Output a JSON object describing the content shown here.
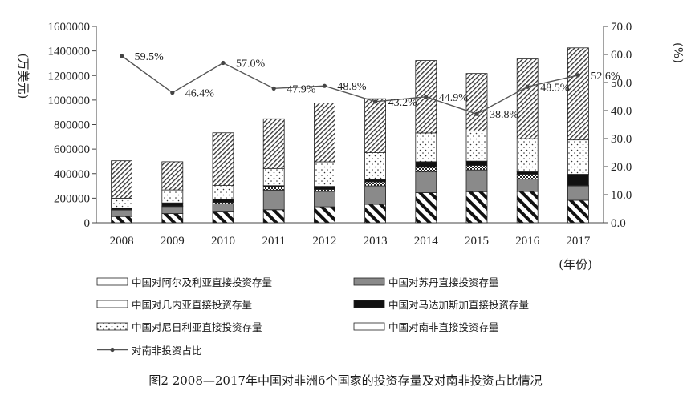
{
  "chart_data": {
    "type": "bar",
    "stacked": true,
    "categories": [
      "2008",
      "2009",
      "2010",
      "2011",
      "2012",
      "2013",
      "2014",
      "2015",
      "2016",
      "2017"
    ],
    "x_unit": "(年份)",
    "y_left": {
      "unit": "(万美元)",
      "range": [
        0,
        1600000
      ],
      "ticks": [
        "0",
        "200000",
        "400000",
        "600000",
        "800000",
        "1000000",
        "1200000",
        "1400000",
        "1600000"
      ]
    },
    "y_right": {
      "unit": "(%)",
      "range": [
        0,
        70
      ],
      "ticks": [
        "0.0",
        "10.0",
        "20.0",
        "30.0",
        "40.0",
        "50.0",
        "60.0",
        "70.0"
      ]
    },
    "series": [
      {
        "name": "中国对阿尔及利亚直接投资存量",
        "pattern": "diag-thick",
        "values": [
          51000,
          75000,
          94000,
          106000,
          130000,
          150000,
          245000,
          253000,
          255000,
          183000
        ]
      },
      {
        "name": "中国对苏丹直接投资存量",
        "pattern": "gray",
        "values": [
          53000,
          57000,
          61000,
          160000,
          125000,
          150000,
          169000,
          177000,
          100000,
          117000
        ]
      },
      {
        "name": "中国对几内亚直接投资存量",
        "pattern": "checker",
        "values": [
          5000,
          5000,
          11000,
          26000,
          16000,
          33000,
          38000,
          37000,
          40000,
          5000
        ]
      },
      {
        "name": "中国对马达加斯加直接投资存量",
        "pattern": "black",
        "values": [
          11000,
          25000,
          27000,
          10000,
          25000,
          18000,
          45000,
          35000,
          20000,
          90000
        ]
      },
      {
        "name": "中国对尼日利亚直接投资存量",
        "pattern": "dots",
        "values": [
          80000,
          105000,
          110000,
          140000,
          200000,
          220000,
          235000,
          245000,
          270000,
          280000
        ]
      },
      {
        "name": "中国对南非直接投资存量",
        "pattern": "diag-thin",
        "values": [
          305000,
          230000,
          430000,
          405000,
          480000,
          440000,
          590000,
          470000,
          650000,
          750000
        ]
      }
    ],
    "line": {
      "name": "对南非投资占比",
      "values": [
        59.5,
        46.4,
        57.0,
        47.9,
        48.8,
        43.2,
        44.9,
        38.8,
        48.5,
        52.6
      ],
      "labels": [
        "59.5%",
        "46.4%",
        "57.0%",
        "47.9%",
        "48.8%",
        "43.2%",
        "44.9%",
        "38.8%",
        "48.5%",
        "52.6%"
      ]
    }
  },
  "caption": "图2 2008—2017年中国对非洲6个国家的投资存量及对南非投资占比情况"
}
